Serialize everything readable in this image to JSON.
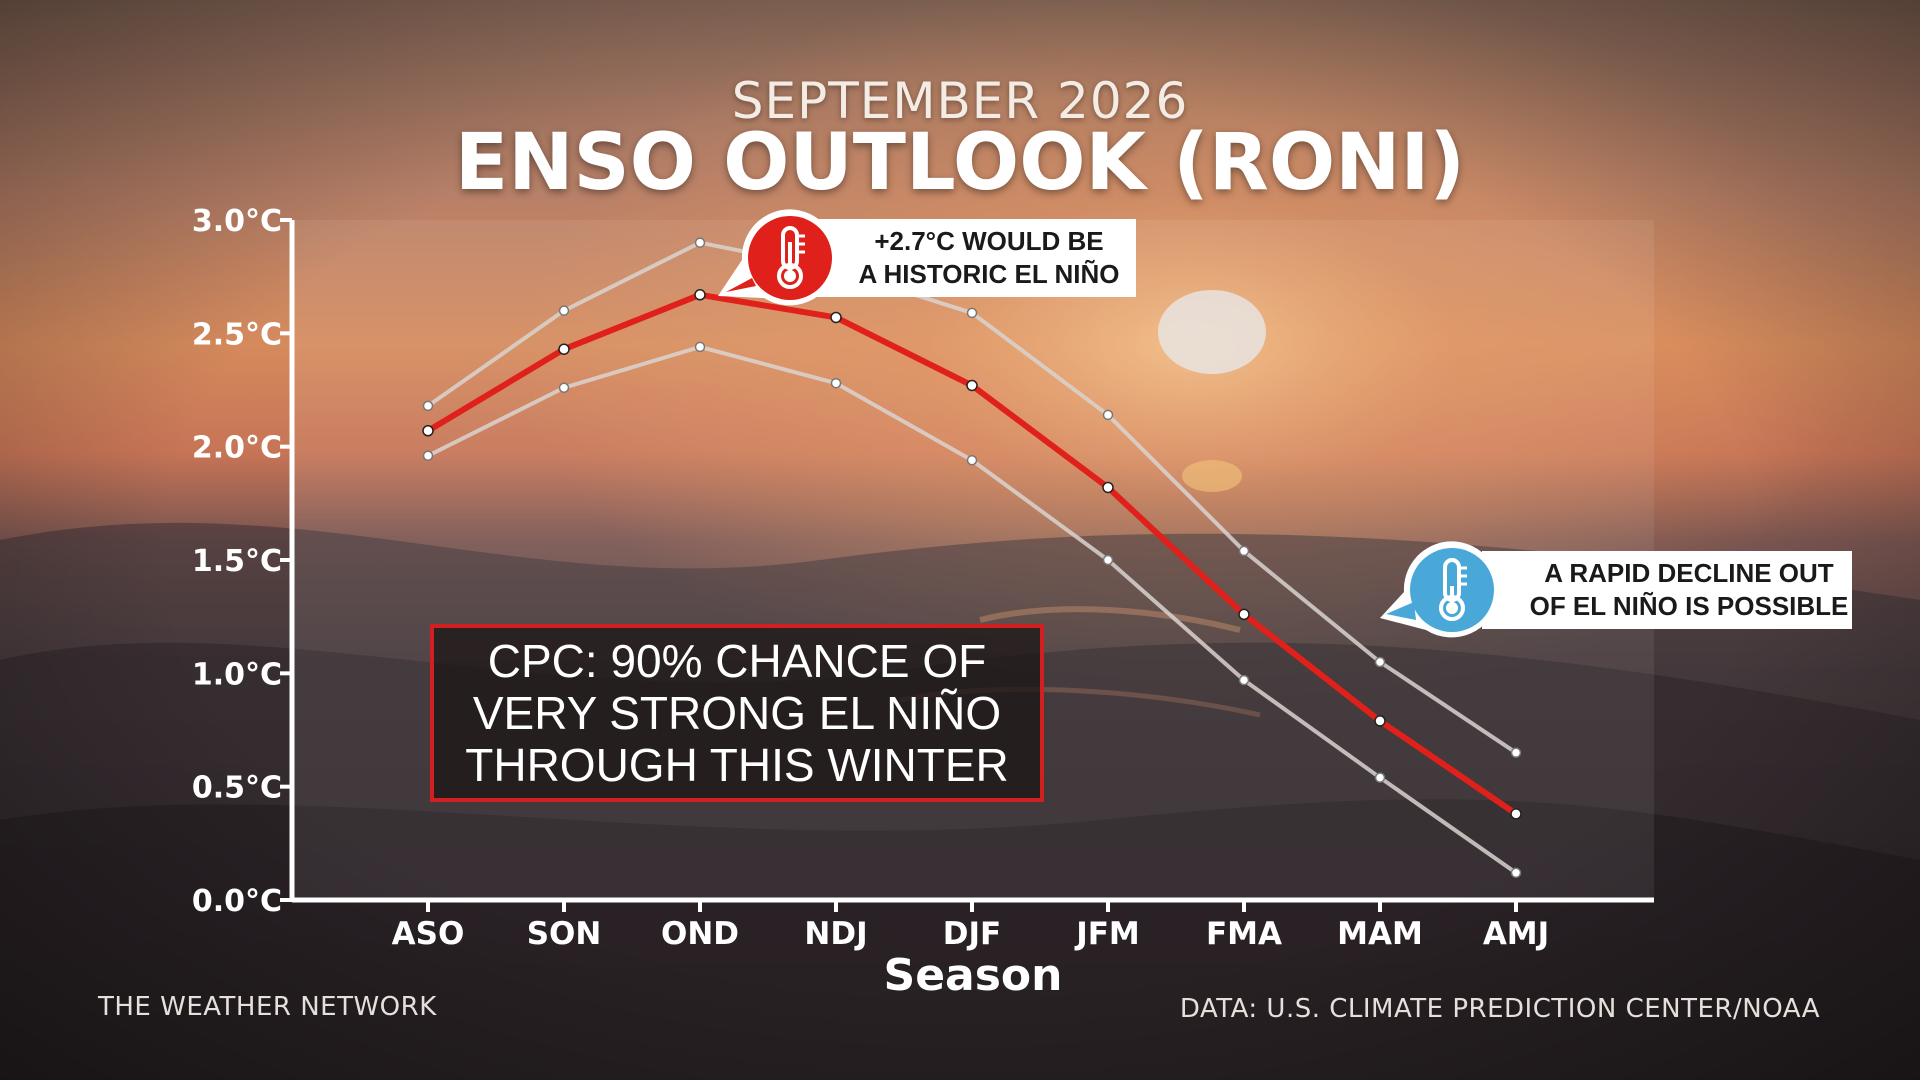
{
  "header": {
    "subtitle": "SEPTEMBER 2026",
    "title": "ENSO OUTLOOK (RONI)"
  },
  "chart_data": {
    "type": "line",
    "x": [
      "ASO",
      "SON",
      "OND",
      "NDJ",
      "DJF",
      "JFM",
      "FMA",
      "MAM",
      "AMJ"
    ],
    "series": [
      {
        "values": [
          2.07,
          2.43,
          2.67,
          2.57,
          2.27,
          1.82,
          1.26,
          0.79,
          0.38
        ],
        "color": "#e0201a"
      },
      {
        "values": [
          2.18,
          2.6,
          2.9,
          2.78,
          2.59,
          2.14,
          1.54,
          1.05,
          0.65
        ],
        "color": "#d9d4d0"
      },
      {
        "values": [
          1.96,
          2.26,
          2.44,
          2.28,
          1.94,
          1.5,
          0.97,
          0.54,
          0.12
        ],
        "color": "#d9d4d0"
      }
    ],
    "yticks": [
      "0.0°C",
      "0.5°C",
      "1.0°C",
      "1.5°C",
      "2.0°C",
      "2.5°C",
      "3.0°C"
    ],
    "ylim": [
      0,
      3
    ],
    "xlabel": "Season",
    "ylabel": "",
    "grid": false,
    "legend": "none"
  },
  "annotations": {
    "cpc_box": "CPC: 90% CHANCE OF\nVERY STRONG EL NIÑO\nTHROUGH THIS WINTER",
    "callout_red": "+2.7°C WOULD BE\nA HISTORIC EL NIÑO",
    "callout_blue": "A RAPID DECLINE OUT\nOF EL NIÑO IS POSSIBLE",
    "callout_red_icon": "thermometer-hot-icon",
    "callout_blue_icon": "thermometer-cold-icon",
    "accent_red": "#e0201a",
    "accent_blue": "#4aa8d8"
  },
  "footer": {
    "left": "THE WEATHER NETWORK",
    "right": "DATA: U.S. CLIMATE PREDICTION CENTER/NOAA"
  }
}
